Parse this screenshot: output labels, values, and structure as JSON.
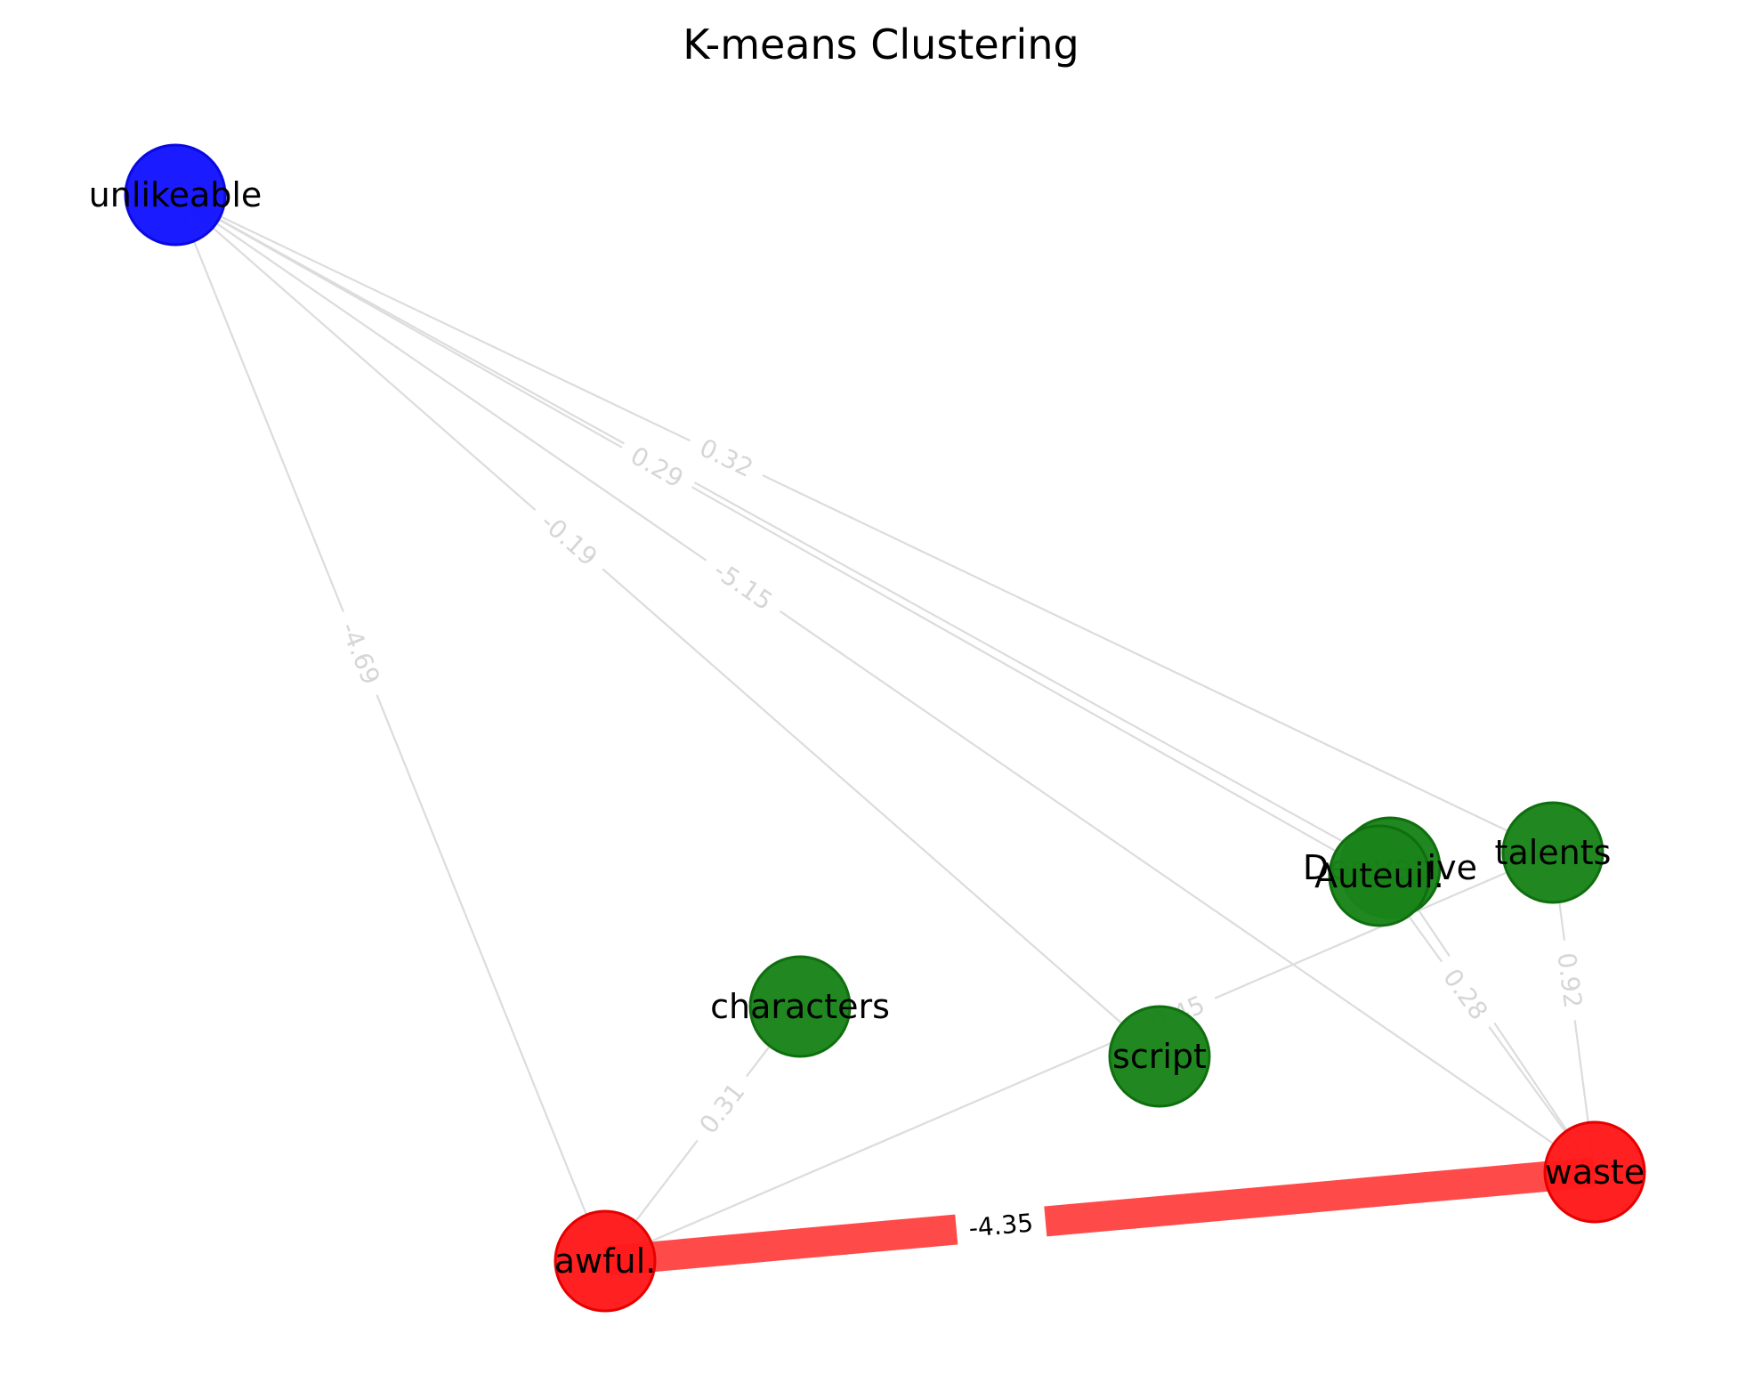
{
  "title": "K-means Clustering",
  "colors": {
    "cluster_blue": "#1414ff",
    "cluster_green": "#1a841a",
    "cluster_red": "#ff1a1a",
    "edge_faint": "#dcdcdc",
    "edge_strong": "#ff4a4a"
  },
  "nodes": [
    {
      "id": "unlikeable",
      "label": "unlikeable",
      "cluster": "blue"
    },
    {
      "id": "derivative",
      "label": "Derivative",
      "cluster": "green"
    },
    {
      "id": "auteuil",
      "label": "Auteuil.",
      "cluster": "green"
    },
    {
      "id": "talents",
      "label": "talents",
      "cluster": "green"
    },
    {
      "id": "characters",
      "label": "characters",
      "cluster": "green"
    },
    {
      "id": "script",
      "label": "script",
      "cluster": "green"
    },
    {
      "id": "waste",
      "label": "waste",
      "cluster": "red"
    },
    {
      "id": "awful",
      "label": "awful.",
      "cluster": "red"
    }
  ],
  "edges": [
    {
      "source": "unlikeable",
      "target": "awful",
      "label": "-4.69",
      "strong": false
    },
    {
      "source": "unlikeable",
      "target": "script",
      "label": "-0.19",
      "strong": false
    },
    {
      "source": "unlikeable",
      "target": "waste",
      "label": "-5.15",
      "strong": false
    },
    {
      "source": "unlikeable",
      "target": "auteuil",
      "label": "0.29",
      "strong": false
    },
    {
      "source": "unlikeable",
      "target": "derivative",
      "label": "",
      "strong": false
    },
    {
      "source": "unlikeable",
      "target": "talents",
      "label": "0.32",
      "strong": false
    },
    {
      "source": "talents",
      "target": "awful",
      "label": "-0.45",
      "strong": false
    },
    {
      "source": "characters",
      "target": "awful",
      "label": "0.31",
      "strong": false
    },
    {
      "source": "auteuil",
      "target": "waste",
      "label": "0.28",
      "strong": false
    },
    {
      "source": "derivative",
      "target": "waste",
      "label": "",
      "strong": false
    },
    {
      "source": "talents",
      "target": "waste",
      "label": "0.92",
      "strong": false
    },
    {
      "source": "awful",
      "target": "waste",
      "label": "-4.35",
      "strong": true
    }
  ]
}
